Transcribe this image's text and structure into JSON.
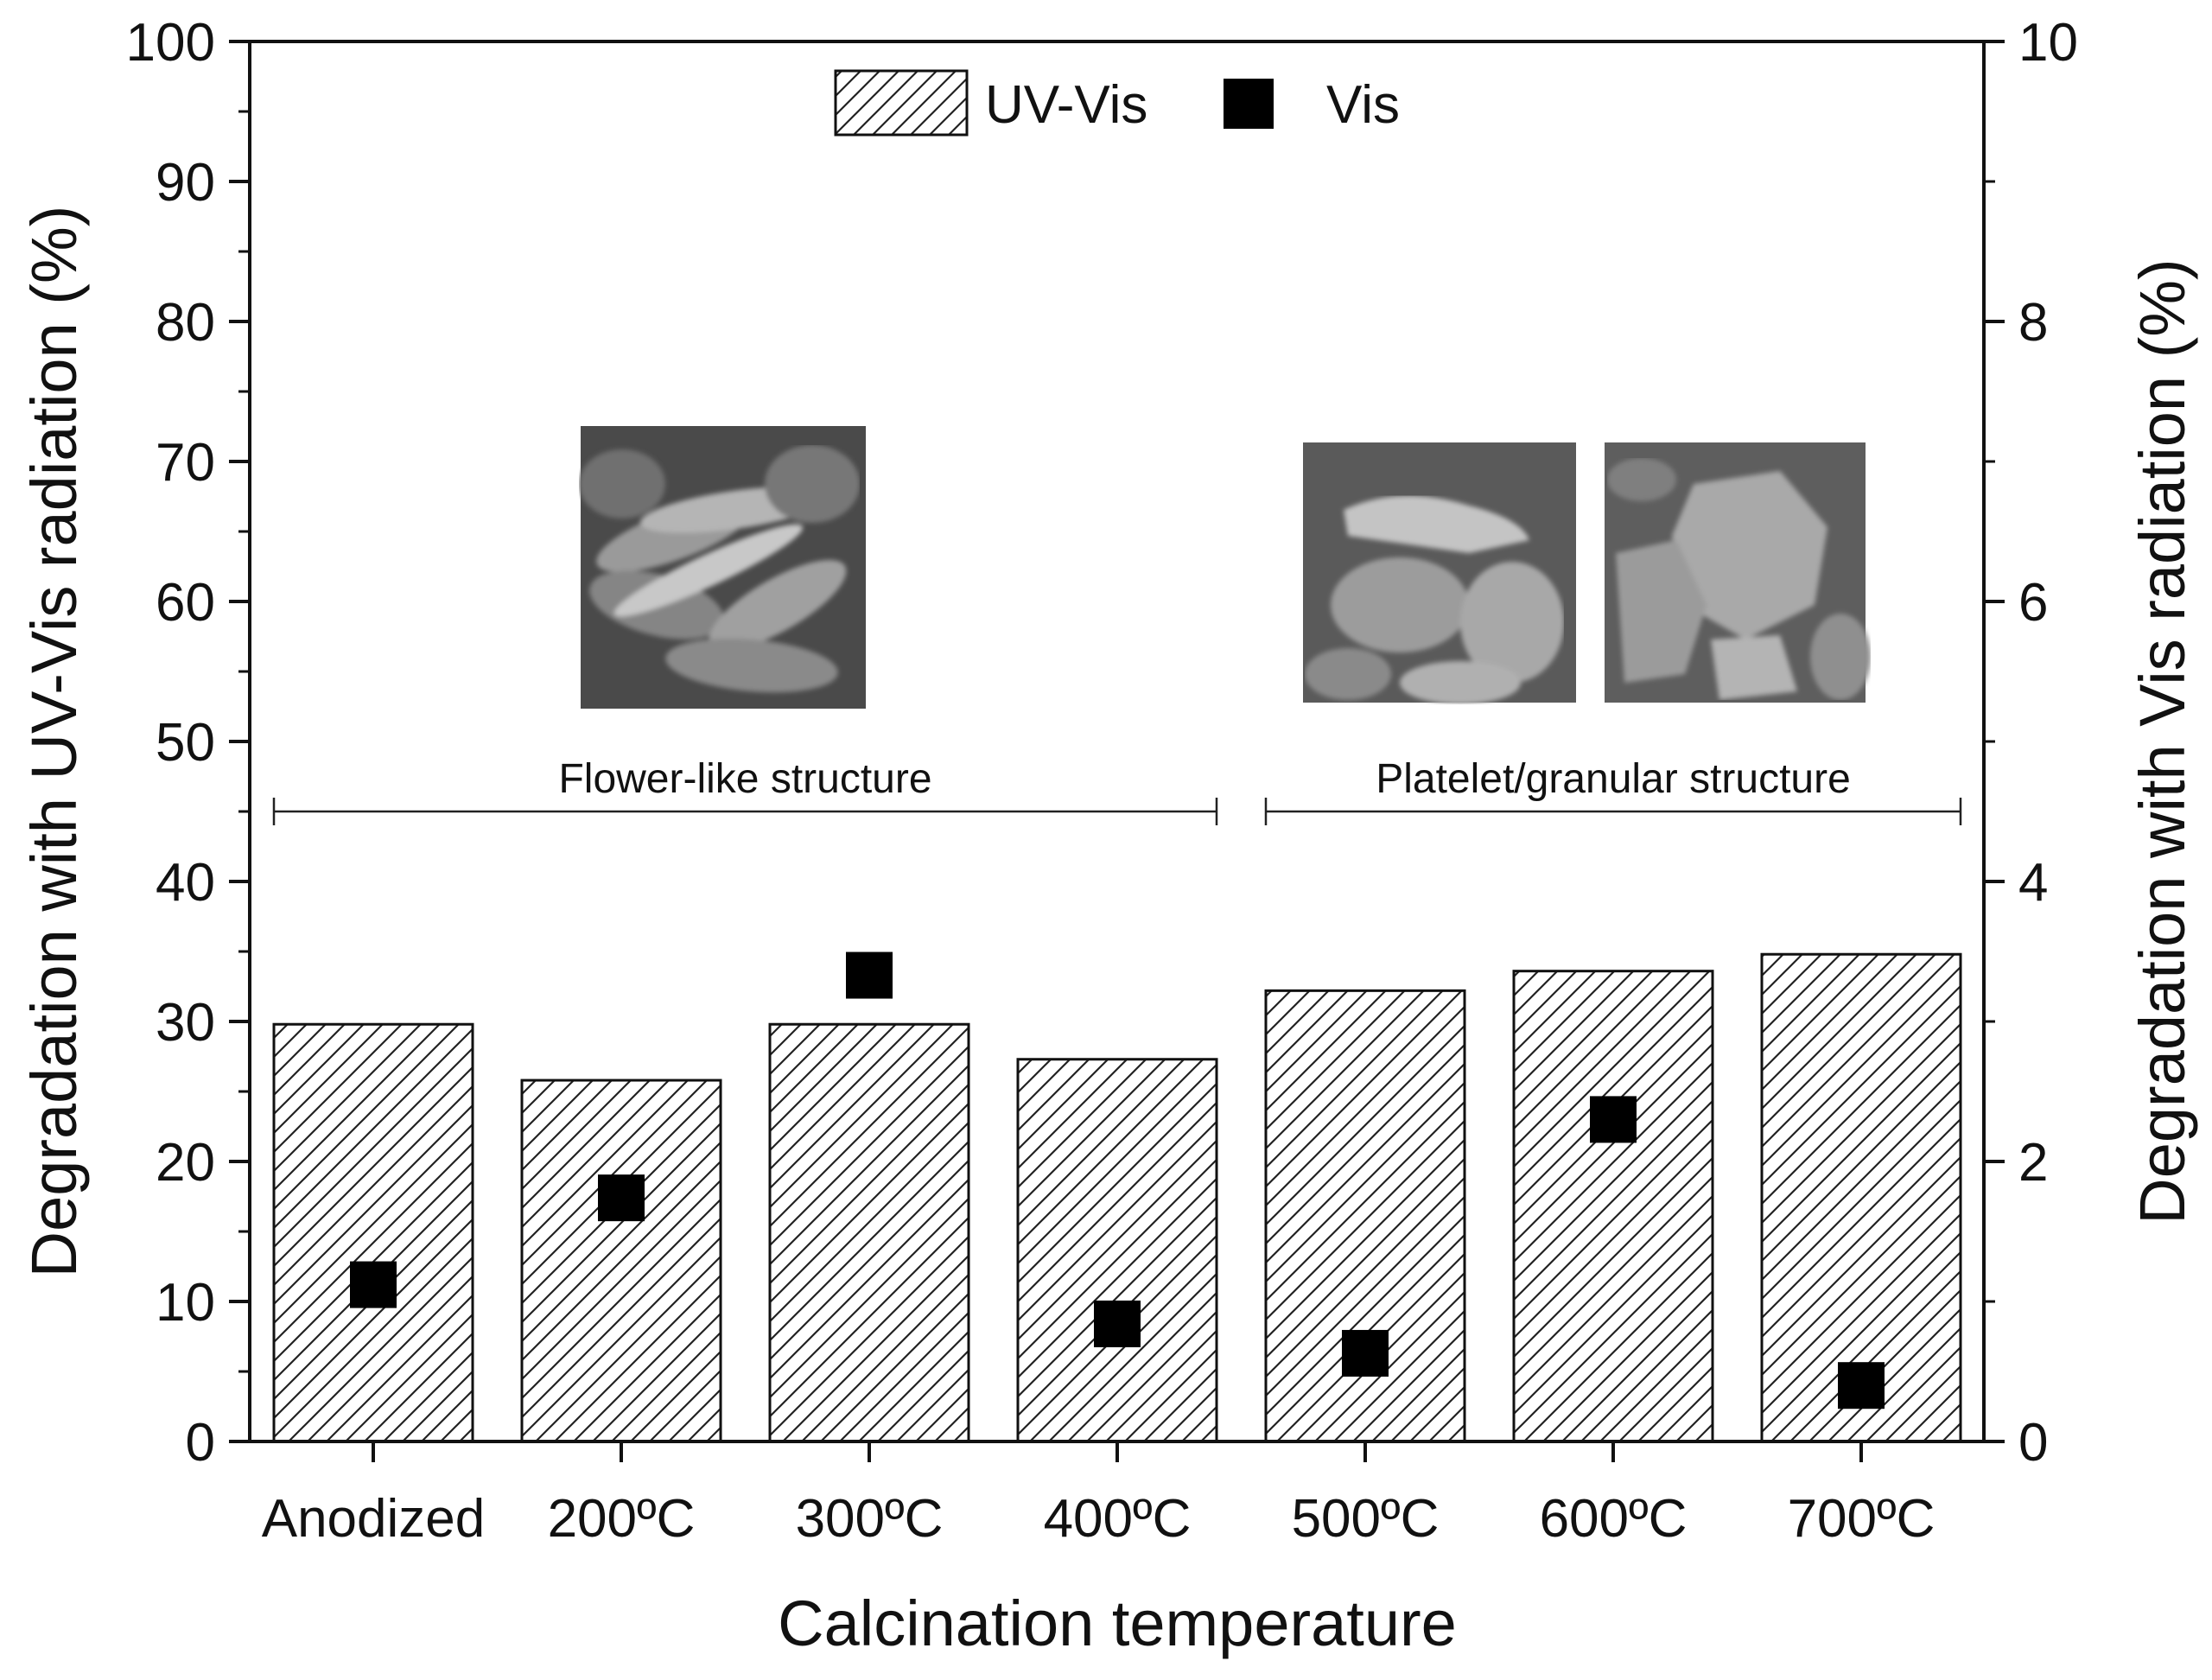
{
  "chart_data": {
    "type": "bar",
    "categories": [
      "Anodized",
      "200ºC",
      "300ºC",
      "400ºC",
      "500ºC",
      "600ºC",
      "700ºC"
    ],
    "series": [
      {
        "name": "UV-Vis",
        "type": "bar",
        "axis": "left",
        "values": [
          29.8,
          25.8,
          29.8,
          27.3,
          32.2,
          33.6,
          34.8
        ]
      },
      {
        "name": "Vis",
        "type": "scatter",
        "axis": "right",
        "values": [
          1.12,
          1.74,
          3.33,
          0.84,
          0.63,
          2.3,
          0.4
        ]
      }
    ],
    "xlabel": "Calcination temperature",
    "ylabel": "Degradation with UV-Vis radiation (%)",
    "y2label": "Degradation with Vis radiation (%)",
    "ylim": [
      0,
      100
    ],
    "y2lim": [
      0,
      10
    ],
    "yticks": [
      0,
      10,
      20,
      30,
      40,
      50,
      60,
      70,
      80,
      90,
      100
    ],
    "y2ticks": [
      0,
      2,
      4,
      6,
      8,
      10
    ],
    "grid": false,
    "legend": "top-center",
    "annotations": [
      {
        "text": "Flower-like structure",
        "from": "Anodized",
        "to": "400ºC",
        "y": 45
      },
      {
        "text": "Platelet/granular structure",
        "from": "500ºC",
        "to": "700ºC",
        "y": 45
      }
    ]
  }
}
